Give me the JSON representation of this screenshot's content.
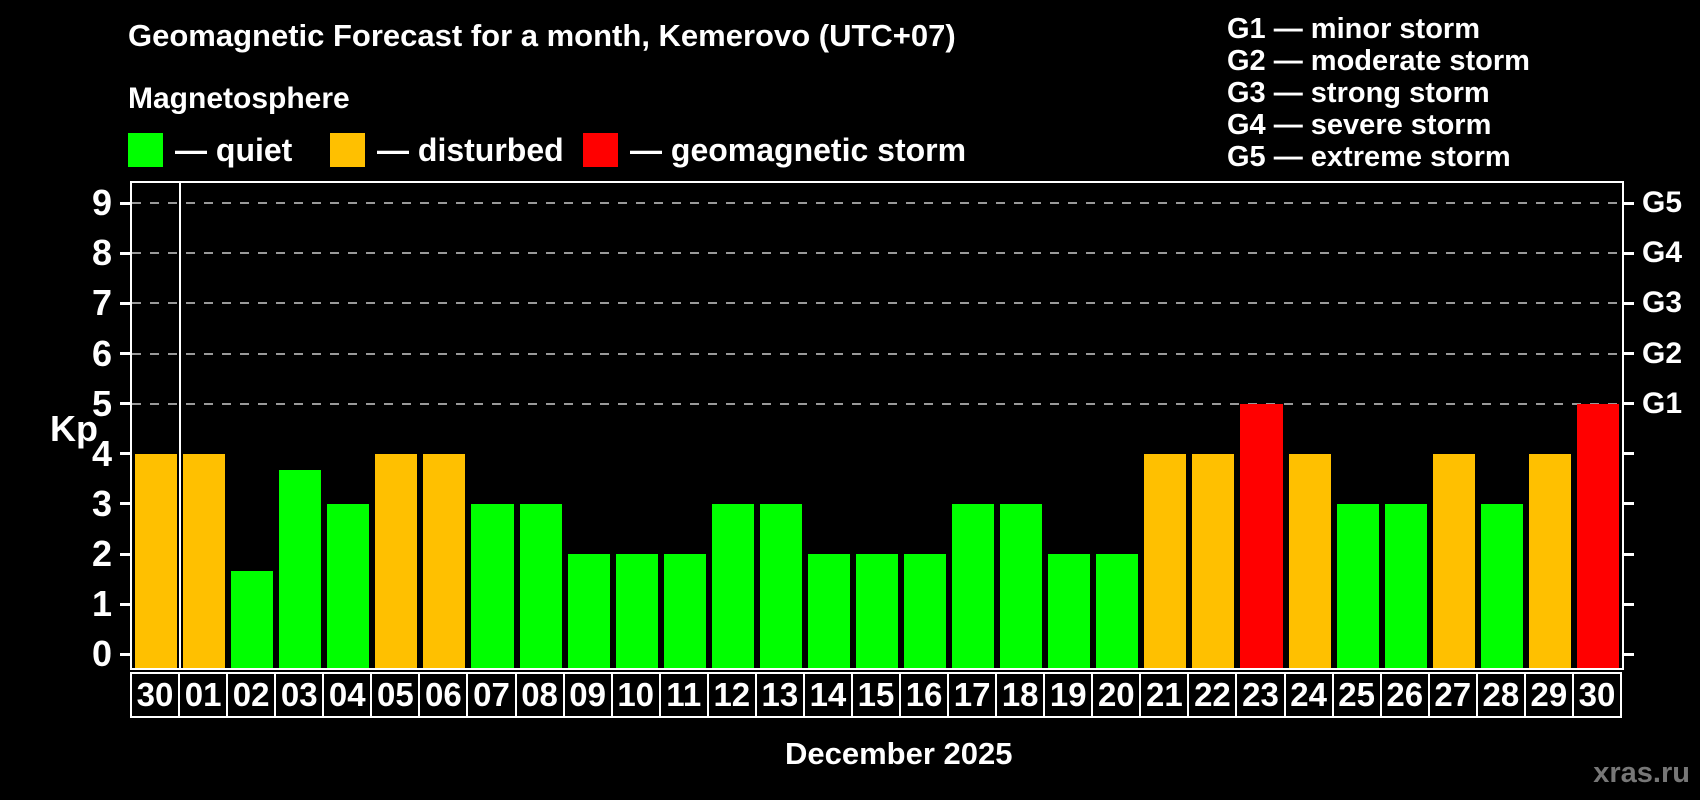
{
  "title": "Geomagnetic Forecast for a month, Kemerovo (UTC+07)",
  "subtitle": "Magnetosphere",
  "legend": [
    {
      "state": "quiet",
      "label": "— quiet",
      "color": "#00ff00"
    },
    {
      "state": "disturbed",
      "label": "— disturbed",
      "color": "#ffc000"
    },
    {
      "state": "storm",
      "label": "— geomagnetic storm",
      "color": "#ff0000"
    }
  ],
  "g_scale_legend": [
    "G1 — minor storm",
    "G2 — moderate storm",
    "G3 — strong storm",
    "G4 — severe storm",
    "G5 — extreme storm"
  ],
  "watermark": "xras.ru",
  "colors": {
    "background": "#000000",
    "axis": "#ffffff",
    "grid": "#999999",
    "text": "#ffffff",
    "watermark": "#777777",
    "quiet": "#00ff00",
    "disturbed": "#ffc000",
    "storm": "#ff0000"
  },
  "chart_data": {
    "type": "bar",
    "title": "Geomagnetic Forecast for a month, Kemerovo (UTC+07)",
    "xlabel": "December 2025",
    "ylabel": "Kp",
    "categories": [
      "30",
      "01",
      "02",
      "03",
      "04",
      "05",
      "06",
      "07",
      "08",
      "09",
      "10",
      "11",
      "12",
      "13",
      "14",
      "15",
      "16",
      "17",
      "18",
      "19",
      "20",
      "21",
      "22",
      "23",
      "24",
      "25",
      "26",
      "27",
      "28",
      "29",
      "30"
    ],
    "values": [
      4,
      4,
      1.67,
      3.67,
      3,
      4,
      4,
      3,
      3,
      2,
      2,
      2,
      3,
      3,
      2,
      2,
      2,
      3,
      3,
      2,
      2,
      4,
      4,
      5,
      4,
      3,
      3,
      4,
      3,
      4,
      5
    ],
    "states": [
      "disturbed",
      "disturbed",
      "quiet",
      "quiet",
      "quiet",
      "disturbed",
      "disturbed",
      "quiet",
      "quiet",
      "quiet",
      "quiet",
      "quiet",
      "quiet",
      "quiet",
      "quiet",
      "quiet",
      "quiet",
      "quiet",
      "quiet",
      "quiet",
      "quiet",
      "disturbed",
      "disturbed",
      "storm",
      "disturbed",
      "quiet",
      "quiet",
      "disturbed",
      "quiet",
      "disturbed",
      "storm"
    ],
    "yticks": [
      0,
      1,
      2,
      3,
      4,
      5,
      6,
      7,
      8,
      9
    ],
    "ylim": [
      -0.27,
      9.4
    ],
    "gridlines_at": [
      5,
      6,
      7,
      8,
      9
    ],
    "right_axis_labels": [
      {
        "value": 5,
        "label": "G1"
      },
      {
        "value": 6,
        "label": "G2"
      },
      {
        "value": 7,
        "label": "G3"
      },
      {
        "value": 8,
        "label": "G4"
      },
      {
        "value": 9,
        "label": "G5"
      }
    ],
    "month_separator_after_index": 0,
    "grid": true,
    "legend_position": "top-left"
  }
}
